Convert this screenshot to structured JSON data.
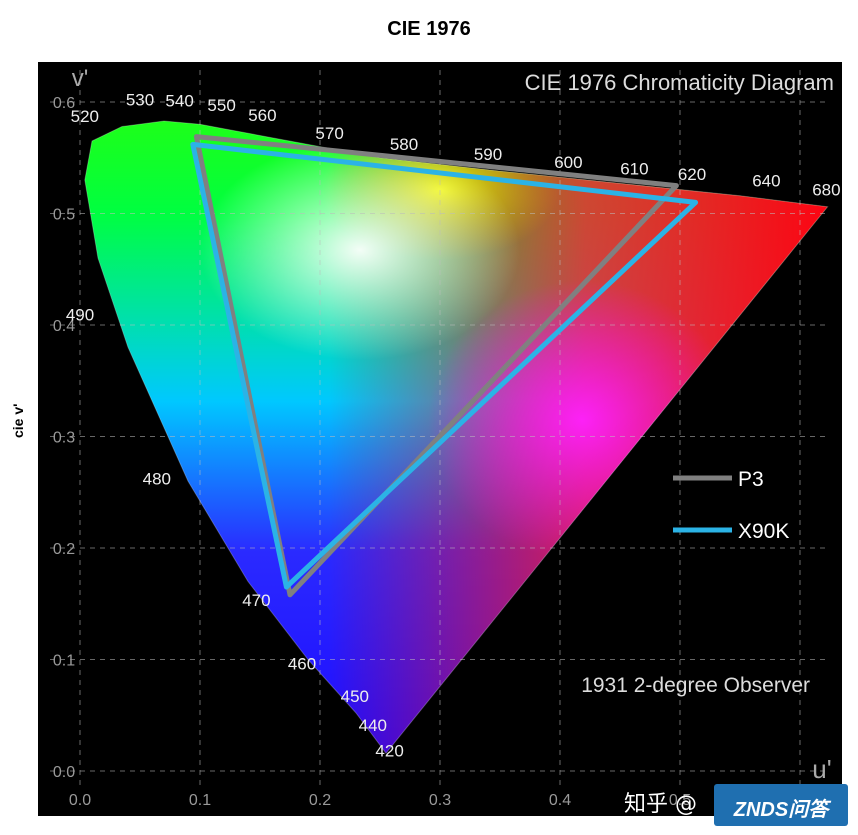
{
  "page_title": "CIE 1976",
  "watermark_zhihu": "知乎 @",
  "watermark_brand": "ZNDS问答",
  "chart_data": {
    "type": "scatter",
    "title": "CIE 1976 Chromaticity Diagram",
    "annotation": "1931 2-degree Observer",
    "xlabel": "u'",
    "ylabel": "v'",
    "outer_ylabel": "cie v'",
    "xlim": [
      0.0,
      0.63
    ],
    "ylim": [
      0.0,
      0.6
    ],
    "grid": true,
    "x_ticks": [
      "0.0",
      "0.1",
      "0.2",
      "0.3",
      "0.4",
      "0.5"
    ],
    "y_ticks": [
      "0.0",
      "0.1",
      "0.2",
      "0.3",
      "0.4",
      "0.5",
      "0.6"
    ],
    "wavelength_labels": [
      {
        "text": "420",
        "u": 0.258,
        "v": 0.013
      },
      {
        "text": "440",
        "u": 0.244,
        "v": 0.036
      },
      {
        "text": "450",
        "u": 0.229,
        "v": 0.062
      },
      {
        "text": "460",
        "u": 0.185,
        "v": 0.091
      },
      {
        "text": "470",
        "u": 0.147,
        "v": 0.148
      },
      {
        "text": "480",
        "u": 0.064,
        "v": 0.257
      },
      {
        "text": "490",
        "u": 0.0,
        "v": 0.404
      },
      {
        "text": "520",
        "u": 0.004,
        "v": 0.582
      },
      {
        "text": "530",
        "u": 0.05,
        "v": 0.597
      },
      {
        "text": "540",
        "u": 0.083,
        "v": 0.596
      },
      {
        "text": "550",
        "u": 0.118,
        "v": 0.592
      },
      {
        "text": "560",
        "u": 0.152,
        "v": 0.583
      },
      {
        "text": "570",
        "u": 0.208,
        "v": 0.567
      },
      {
        "text": "580",
        "u": 0.27,
        "v": 0.557
      },
      {
        "text": "590",
        "u": 0.34,
        "v": 0.548
      },
      {
        "text": "600",
        "u": 0.407,
        "v": 0.541
      },
      {
        "text": "610",
        "u": 0.462,
        "v": 0.535
      },
      {
        "text": "620",
        "u": 0.51,
        "v": 0.53
      },
      {
        "text": "640",
        "u": 0.572,
        "v": 0.524
      },
      {
        "text": "680",
        "u": 0.622,
        "v": 0.516
      }
    ],
    "locus": [
      [
        0.255,
        0.016
      ],
      [
        0.23,
        0.052
      ],
      [
        0.19,
        0.1
      ],
      [
        0.14,
        0.17
      ],
      [
        0.09,
        0.26
      ],
      [
        0.04,
        0.38
      ],
      [
        0.015,
        0.46
      ],
      [
        0.004,
        0.53
      ],
      [
        0.01,
        0.565
      ],
      [
        0.035,
        0.578
      ],
      [
        0.07,
        0.583
      ],
      [
        0.1,
        0.58
      ],
      [
        0.16,
        0.568
      ],
      [
        0.25,
        0.55
      ],
      [
        0.35,
        0.538
      ],
      [
        0.45,
        0.527
      ],
      [
        0.55,
        0.516
      ],
      [
        0.623,
        0.506
      ]
    ],
    "series": [
      {
        "name": "P3",
        "color": "#808080",
        "points": [
          [
            0.097,
            0.569
          ],
          [
            0.497,
            0.525
          ],
          [
            0.175,
            0.158
          ]
        ]
      },
      {
        "name": "X90K",
        "color": "#2bb3e6",
        "points": [
          [
            0.094,
            0.562
          ],
          [
            0.513,
            0.51
          ],
          [
            0.172,
            0.165
          ]
        ]
      }
    ]
  }
}
